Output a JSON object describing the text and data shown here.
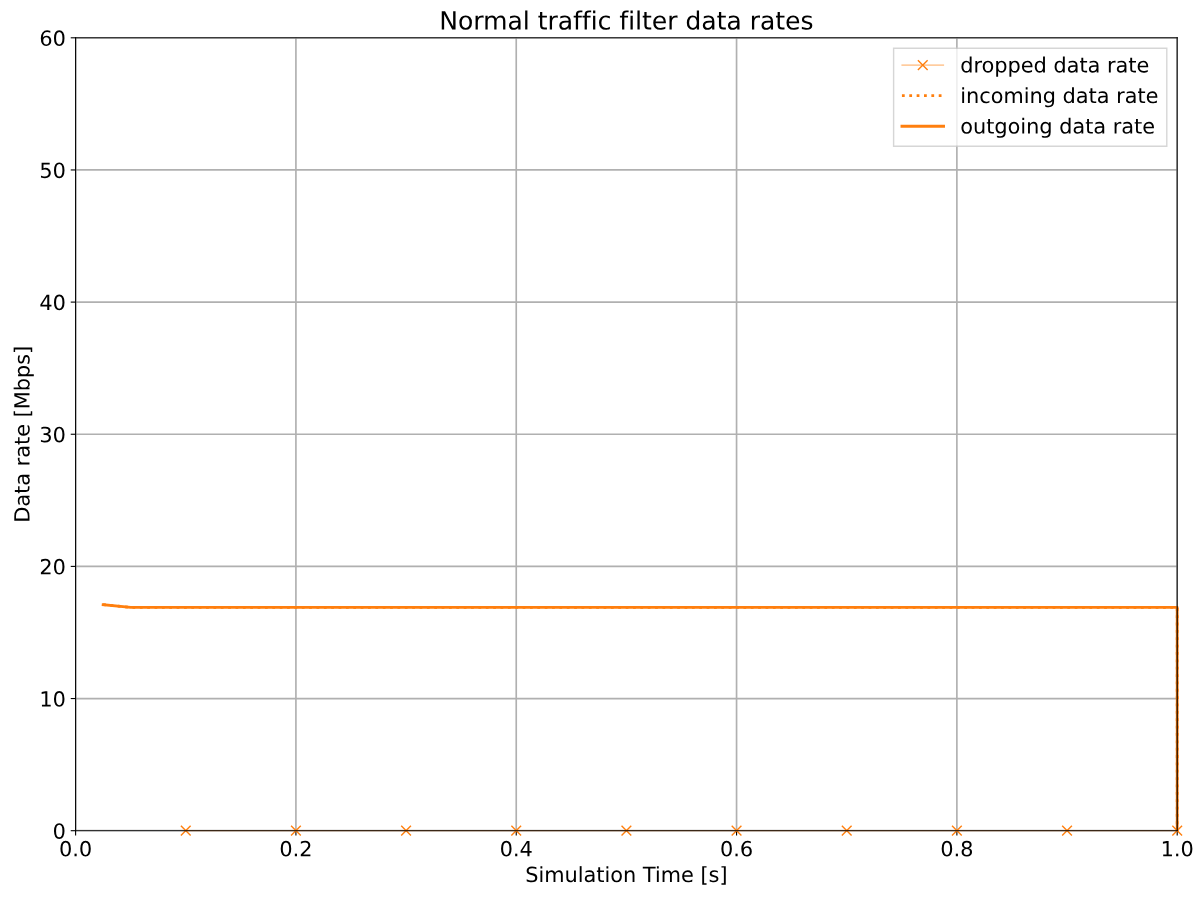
{
  "chart_data": {
    "type": "line",
    "title": "Normal traffic filter data rates",
    "xlabel": "Simulation Time [s]",
    "ylabel": "Data rate [Mbps]",
    "xlim": [
      0.0,
      1.0
    ],
    "ylim": [
      0,
      60
    ],
    "xticks": [
      {
        "value": 0,
        "label": "0.0"
      },
      0.2,
      0.4,
      0.6,
      0.8,
      {
        "value": 1,
        "label": "1.0"
      }
    ],
    "yticks": [
      0,
      10,
      20,
      30,
      40,
      50,
      60
    ],
    "grid": true,
    "legend": "top right",
    "series": [
      {
        "name": "dropped data rate",
        "color": "#ff7f0e",
        "marker": "cross",
        "line_style": "solid",
        "x": [
          0.1,
          0.2,
          0.3,
          0.4,
          0.5,
          0.6,
          0.7,
          0.8,
          0.9,
          1.0
        ],
        "values": [
          0,
          0,
          0,
          0,
          0,
          0,
          0,
          0,
          0,
          0
        ]
      },
      {
        "name": "incoming data rate",
        "color": "#ff7f0e",
        "marker": "none",
        "line_style": "dotted",
        "x": [
          0.025,
          0.05,
          1.0,
          1.0
        ],
        "values": [
          17.1,
          16.9,
          16.9,
          0
        ]
      },
      {
        "name": "outgoing data rate",
        "color": "#ff7f0e",
        "marker": "none",
        "line_style": "solid",
        "x": [
          0.025,
          0.05,
          1.0,
          1.0
        ],
        "values": [
          17.1,
          16.9,
          16.9,
          0
        ]
      }
    ]
  }
}
